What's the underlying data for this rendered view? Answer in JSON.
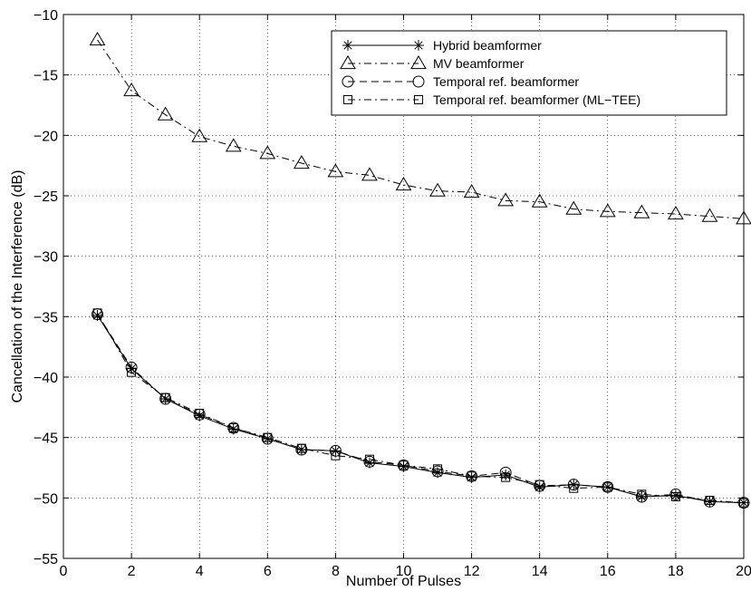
{
  "chart_data": {
    "type": "line",
    "title": "",
    "xlabel": "Number of Pulses",
    "ylabel": "Cancellation of the Interference (dB)",
    "xlim": [
      0,
      20
    ],
    "ylim": [
      -55,
      -10
    ],
    "xticks": [
      0,
      2,
      4,
      6,
      8,
      10,
      12,
      14,
      16,
      18,
      20
    ],
    "yticks": [
      -10,
      -15,
      -20,
      -25,
      -30,
      -35,
      -40,
      -45,
      -50,
      -55
    ],
    "xtick_labels": [
      "0",
      "2",
      "4",
      "6",
      "8",
      "10",
      "12",
      "14",
      "16",
      "18",
      "20"
    ],
    "ytick_labels": [
      "−10",
      "−15",
      "−20",
      "−25",
      "−30",
      "−35",
      "−40",
      "−45",
      "−50",
      "−55"
    ],
    "grid": true,
    "legend_position": "top-right",
    "x": [
      1,
      2,
      3,
      4,
      5,
      6,
      7,
      8,
      9,
      10,
      11,
      12,
      13,
      14,
      15,
      16,
      17,
      18,
      19,
      20
    ],
    "series": [
      {
        "name": "Hybrid beamformer",
        "marker": "asterisk",
        "dash": "solid",
        "values": [
          -34.9,
          -39.3,
          -41.8,
          -43.2,
          -44.3,
          -45.1,
          -46.0,
          -46.1,
          -47.1,
          -47.4,
          -47.9,
          -48.3,
          -48.1,
          -49.1,
          -48.9,
          -49.1,
          -49.9,
          -49.8,
          -50.3,
          -50.4
        ]
      },
      {
        "name": "MV beamformer",
        "marker": "triangle",
        "dash": "dashdot",
        "values": [
          -12.1,
          -16.3,
          -18.3,
          -20.1,
          -20.9,
          -21.5,
          -22.3,
          -23.0,
          -23.3,
          -24.1,
          -24.6,
          -24.7,
          -25.4,
          -25.5,
          -26.1,
          -26.3,
          -26.4,
          -26.5,
          -26.7,
          -26.9
        ]
      },
      {
        "name": "Temporal ref. beamformer",
        "marker": "circle",
        "dash": "dashed",
        "values": [
          -34.8,
          -39.2,
          -41.8,
          -43.1,
          -44.2,
          -45.1,
          -46.0,
          -46.1,
          -47.0,
          -47.3,
          -47.8,
          -48.2,
          -47.9,
          -49.0,
          -48.9,
          -49.1,
          -49.9,
          -49.7,
          -50.3,
          -50.4
        ]
      },
      {
        "name": "Temporal ref. beamformer (ML−TEE)",
        "marker": "square",
        "dash": "dashdot",
        "values": [
          -34.7,
          -39.6,
          -41.7,
          -43.0,
          -44.2,
          -45.0,
          -45.9,
          -46.5,
          -46.8,
          -47.3,
          -47.6,
          -48.2,
          -48.3,
          -48.9,
          -49.2,
          -49.1,
          -49.7,
          -49.9,
          -50.2,
          -50.4
        ]
      }
    ]
  }
}
